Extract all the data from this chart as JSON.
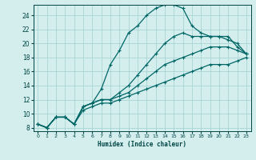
{
  "xlabel": "Humidex (Indice chaleur)",
  "bg_color": "#d4eeee",
  "grid_color": "#a8d4d4",
  "line_color": "#006666",
  "xlim": [
    -0.5,
    23.5
  ],
  "ylim": [
    7.5,
    25.5
  ],
  "xticks": [
    0,
    1,
    2,
    3,
    4,
    5,
    6,
    7,
    8,
    9,
    10,
    11,
    12,
    13,
    14,
    15,
    16,
    17,
    18,
    19,
    20,
    21,
    22,
    23
  ],
  "yticks": [
    8,
    10,
    12,
    14,
    16,
    18,
    20,
    22,
    24
  ],
  "series": [
    {
      "x": [
        0,
        1,
        2,
        3,
        4,
        5,
        6,
        7,
        8,
        9,
        10,
        11,
        12,
        13,
        14,
        15,
        16,
        17,
        18,
        19,
        20,
        21,
        22,
        23
      ],
      "y": [
        8.5,
        8.0,
        9.5,
        9.5,
        8.5,
        11.0,
        11.5,
        13.5,
        17.0,
        19.0,
        21.5,
        22.5,
        24.0,
        25.0,
        25.5,
        25.5,
        25.0,
        22.5,
        21.5,
        21.0,
        21.0,
        20.5,
        20.0,
        18.5
      ]
    },
    {
      "x": [
        0,
        1,
        2,
        3,
        4,
        5,
        6,
        7,
        8,
        9,
        10,
        11,
        12,
        13,
        14,
        15,
        16,
        17,
        18,
        19,
        20,
        21,
        22,
        23
      ],
      "y": [
        8.5,
        8.0,
        9.5,
        9.5,
        8.5,
        11.0,
        11.5,
        12.0,
        12.0,
        13.0,
        14.0,
        15.5,
        17.0,
        18.5,
        20.0,
        21.0,
        21.5,
        21.0,
        21.0,
        21.0,
        21.0,
        21.0,
        19.5,
        18.5
      ]
    },
    {
      "x": [
        0,
        1,
        2,
        3,
        4,
        5,
        6,
        7,
        8,
        9,
        10,
        11,
        12,
        13,
        14,
        15,
        16,
        17,
        18,
        19,
        20,
        21,
        22,
        23
      ],
      "y": [
        8.5,
        8.0,
        9.5,
        9.5,
        8.5,
        11.0,
        11.5,
        12.0,
        12.0,
        12.5,
        13.0,
        14.0,
        15.0,
        16.0,
        17.0,
        17.5,
        18.0,
        18.5,
        19.0,
        19.5,
        19.5,
        19.5,
        19.0,
        18.5
      ]
    },
    {
      "x": [
        0,
        1,
        2,
        3,
        4,
        5,
        6,
        7,
        8,
        9,
        10,
        11,
        12,
        13,
        14,
        15,
        16,
        17,
        18,
        19,
        20,
        21,
        22,
        23
      ],
      "y": [
        8.5,
        8.0,
        9.5,
        9.5,
        8.5,
        10.5,
        11.0,
        11.5,
        11.5,
        12.0,
        12.5,
        13.0,
        13.5,
        14.0,
        14.5,
        15.0,
        15.5,
        16.0,
        16.5,
        17.0,
        17.0,
        17.0,
        17.5,
        18.0
      ]
    }
  ]
}
